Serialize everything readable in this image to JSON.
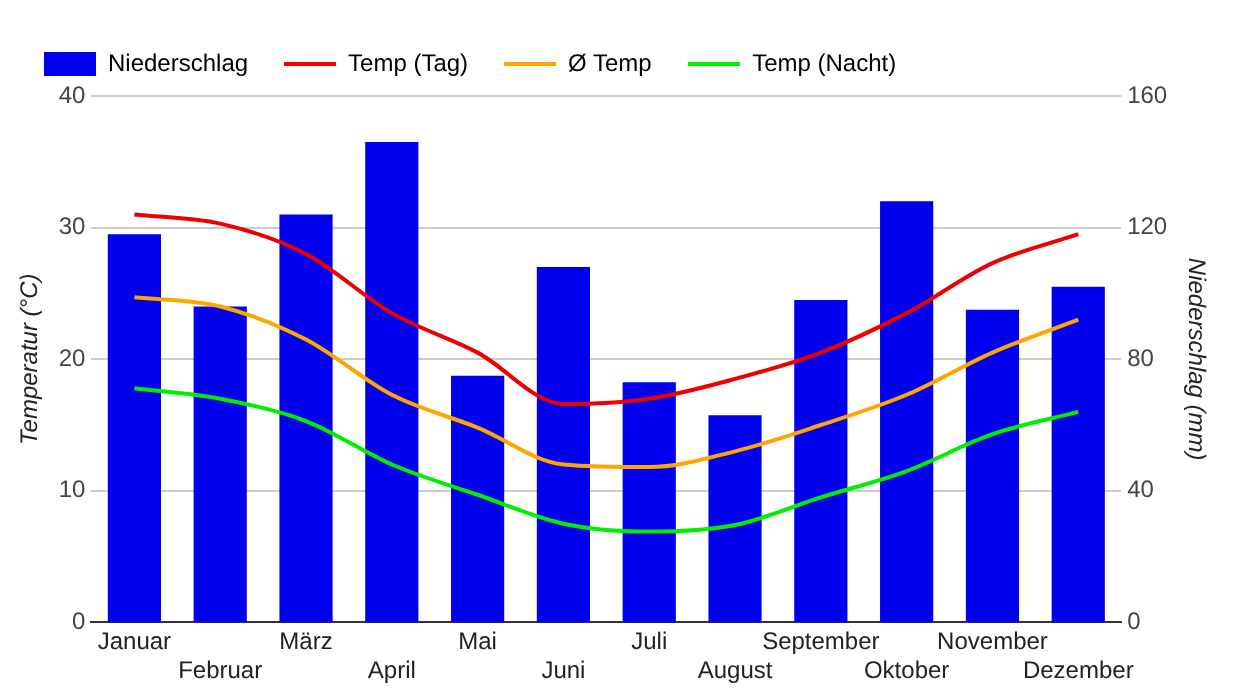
{
  "chart_data": {
    "type": "bar",
    "categories": [
      "Januar",
      "Februar",
      "März",
      "April",
      "Mai",
      "Juni",
      "Juli",
      "August",
      "September",
      "Oktober",
      "November",
      "Dezember"
    ],
    "ylabel": "Temperatur (°C)",
    "y2label": "Niederschlag (mm)",
    "ylim": [
      0,
      40
    ],
    "yticks": [
      0,
      10,
      20,
      30,
      40
    ],
    "y2lim": [
      0,
      160
    ],
    "y2ticks": [
      0,
      40,
      80,
      120,
      160
    ],
    "grid": "y",
    "legend": "top left",
    "marker": "none",
    "line_style": "solid",
    "series": [
      {
        "name": "Niederschlag",
        "axis": "y2",
        "color": "#0000ee",
        "values": [
          118,
          96,
          124,
          146,
          75,
          108,
          73,
          63,
          98,
          128,
          95,
          102
        ]
      },
      {
        "name": "Temp (Tag)",
        "type": "line",
        "color": "#ee0000",
        "values": [
          31,
          30.3,
          28,
          23.5,
          20.5,
          16.6,
          17,
          18.5,
          20.5,
          23.5,
          27.3,
          29.5
        ]
      },
      {
        "name": "Ø Temp",
        "type": "line",
        "color": "#ffa500",
        "values": [
          24.7,
          24,
          21.5,
          17.3,
          14.8,
          12,
          11.8,
          13,
          15,
          17.3,
          20.5,
          23
        ]
      },
      {
        "name": "Temp (Nacht)",
        "type": "line",
        "color": "#00ee00",
        "values": [
          17.8,
          17,
          15.3,
          12,
          9.7,
          7.5,
          6.9,
          7.4,
          9.5,
          11.5,
          14.3,
          16
        ]
      }
    ]
  }
}
